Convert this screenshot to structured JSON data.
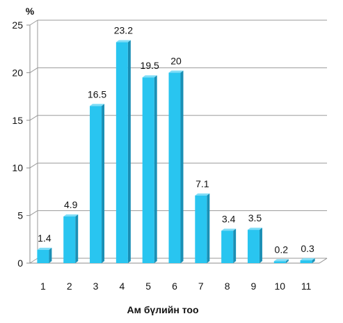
{
  "chart_data": {
    "type": "bar",
    "categories": [
      "1",
      "2",
      "3",
      "4",
      "5",
      "6",
      "7",
      "8",
      "9",
      "10",
      "11"
    ],
    "values": [
      1.4,
      4.9,
      16.5,
      23.2,
      19.5,
      20,
      7.1,
      3.4,
      3.5,
      0.2,
      0.3
    ],
    "value_labels": [
      "1.4",
      "4.9",
      "16.5",
      "23.2",
      "19.5",
      "20",
      "7.1",
      "3.4",
      "3.5",
      "0.2",
      "0.3"
    ],
    "y_ticks": [
      "0",
      "5",
      "10",
      "15",
      "20",
      "25"
    ],
    "y_unit": "%",
    "xlabel": "Ам бүлийн тоо",
    "ylim": [
      0,
      25
    ],
    "grid": true,
    "legend": "none",
    "colors": {
      "bar_front": "#29C5F0",
      "bar_side": "#1A8FB5",
      "bar_top": "#7FDDF7",
      "grid": "#9A9A9A",
      "axis": "#8C8C8C"
    }
  }
}
